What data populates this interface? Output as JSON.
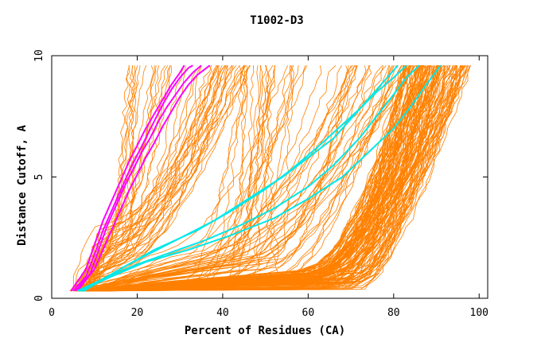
{
  "chart_data": {
    "type": "line",
    "title": "T1002-D3",
    "xlabel": "Percent of Residues (CA)",
    "ylabel": "Distance Cutoff, A",
    "xlim": [
      0,
      102
    ],
    "ylim": [
      0,
      10
    ],
    "xticks": [
      0,
      20,
      40,
      60,
      80,
      100
    ],
    "yticks": [
      0,
      5,
      10
    ],
    "grid": false,
    "colors": {
      "background_curves": "#ff8000",
      "magenta": "#ff00ff",
      "cyan": "#00e8e8",
      "axis": "#000000"
    },
    "series": [
      {
        "name": "magenta-1",
        "color": "#ff00ff",
        "x": [
          4.5,
          8,
          10,
          12,
          14,
          16,
          18,
          20,
          22,
          24,
          26,
          28,
          30,
          31
        ],
        "y": [
          0.3,
          1.2,
          2.2,
          3.2,
          4.0,
          4.8,
          5.6,
          6.3,
          7.0,
          7.6,
          8.2,
          8.8,
          9.3,
          9.6
        ]
      },
      {
        "name": "magenta-2",
        "color": "#ff00ff",
        "x": [
          5,
          8,
          10,
          12,
          14,
          16,
          18,
          20,
          22,
          24,
          26,
          28,
          30,
          32,
          33
        ],
        "y": [
          0.3,
          0.9,
          1.8,
          2.8,
          3.6,
          4.4,
          5.2,
          5.9,
          6.6,
          7.3,
          8.0,
          8.6,
          9.1,
          9.5,
          9.6
        ]
      },
      {
        "name": "magenta-3",
        "color": "#ff00ff",
        "x": [
          5.5,
          9,
          11,
          13,
          15,
          17,
          19,
          21,
          23,
          25,
          27,
          29,
          31,
          33,
          35
        ],
        "y": [
          0.3,
          1.0,
          2.0,
          3.0,
          3.8,
          4.6,
          5.3,
          6.0,
          6.6,
          7.3,
          7.9,
          8.4,
          8.9,
          9.3,
          9.6
        ]
      },
      {
        "name": "magenta-4",
        "color": "#ff00ff",
        "x": [
          6,
          10,
          12,
          14,
          16,
          18,
          20,
          22,
          24,
          26,
          28,
          30,
          32,
          34,
          37
        ],
        "y": [
          0.3,
          1.2,
          2.0,
          2.8,
          3.6,
          4.4,
          5.1,
          5.8,
          6.4,
          7.1,
          7.7,
          8.3,
          8.8,
          9.2,
          9.6
        ]
      },
      {
        "name": "cyan-1",
        "color": "#00e8e8",
        "x": [
          6,
          12,
          20,
          28,
          36,
          44,
          52,
          60,
          66,
          72,
          76,
          80,
          83,
          86
        ],
        "y": [
          0.3,
          0.8,
          1.4,
          1.9,
          2.4,
          3.0,
          3.7,
          4.6,
          5.5,
          6.6,
          7.5,
          8.4,
          9.1,
          9.6
        ]
      },
      {
        "name": "cyan-2",
        "color": "#00e8e8",
        "x": [
          6.5,
          14,
          22,
          32,
          42,
          52,
          60,
          68,
          74,
          80,
          84,
          88,
          91
        ],
        "y": [
          0.3,
          0.9,
          1.5,
          2.0,
          2.6,
          3.3,
          4.1,
          5.0,
          6.0,
          7.0,
          7.9,
          8.9,
          9.6
        ]
      },
      {
        "name": "cyan-3",
        "color": "#00e8e8",
        "x": [
          7,
          16,
          24,
          34,
          42,
          50,
          56,
          62,
          67,
          72,
          76,
          80,
          83
        ],
        "y": [
          0.3,
          1.2,
          2.0,
          2.8,
          3.6,
          4.5,
          5.3,
          6.2,
          7.0,
          7.8,
          8.5,
          9.1,
          9.6
        ]
      },
      {
        "name": "cyan-4",
        "color": "#00e8e8",
        "x": [
          7.5,
          18,
          28,
          38,
          46,
          54,
          60,
          66,
          70,
          74,
          78,
          81
        ],
        "y": [
          0.3,
          1.4,
          2.3,
          3.2,
          4.1,
          5.0,
          5.8,
          6.6,
          7.4,
          8.2,
          9.0,
          9.6
        ]
      }
    ],
    "background_series_description_count": 230
  }
}
